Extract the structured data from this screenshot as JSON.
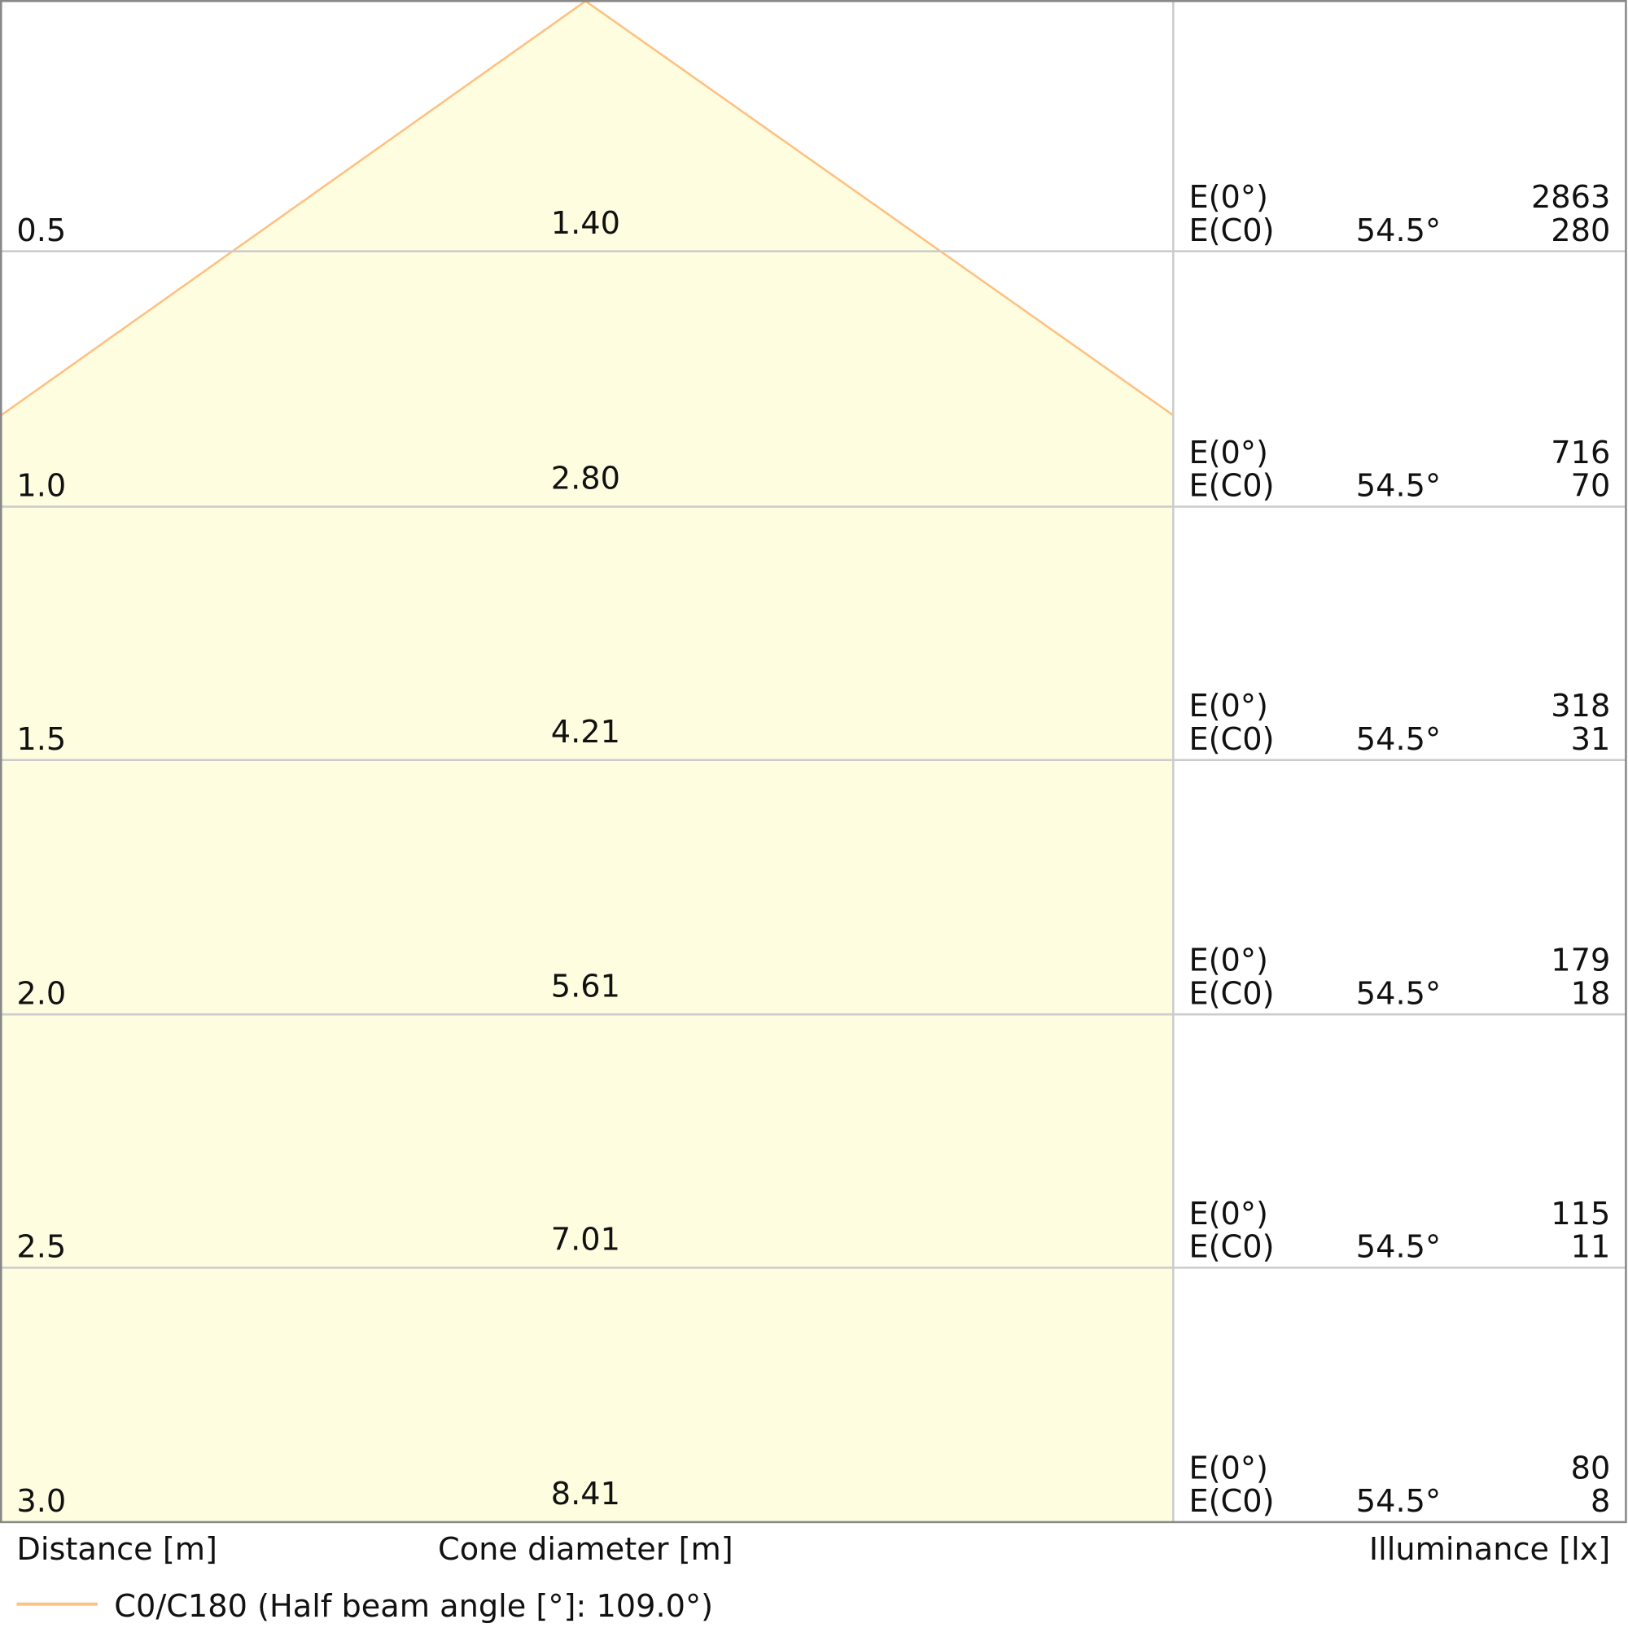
{
  "chart_data": {
    "type": "table",
    "title": "",
    "xlabel": "Cone diameter [m]",
    "ylabel": "Distance [m]",
    "right_label": "Illuminance [lx]",
    "half_beam_angle_label": "54.5°",
    "row_labels": [
      "E(0°)",
      "E(C0)"
    ],
    "rows": [
      {
        "distance": "0.5",
        "diameter": "1.40",
        "e0": "2863",
        "ec0": "280"
      },
      {
        "distance": "1.0",
        "diameter": "2.80",
        "e0": "716",
        "ec0": "70"
      },
      {
        "distance": "1.5",
        "diameter": "4.21",
        "e0": "318",
        "ec0": "31"
      },
      {
        "distance": "2.0",
        "diameter": "5.61",
        "e0": "179",
        "ec0": "18"
      },
      {
        "distance": "2.5",
        "diameter": "7.01",
        "e0": "115",
        "ec0": "11"
      },
      {
        "distance": "3.0",
        "diameter": "8.41",
        "e0": "80",
        "ec0": "8"
      }
    ],
    "legend": [
      {
        "name": "C0/C180 (Half beam angle [°]: 109.0°)",
        "color": "#ffc080"
      }
    ],
    "colors": {
      "cone_fill": "#fffde0",
      "cone_line": "#ffc080",
      "grid": "#cccccc"
    }
  }
}
